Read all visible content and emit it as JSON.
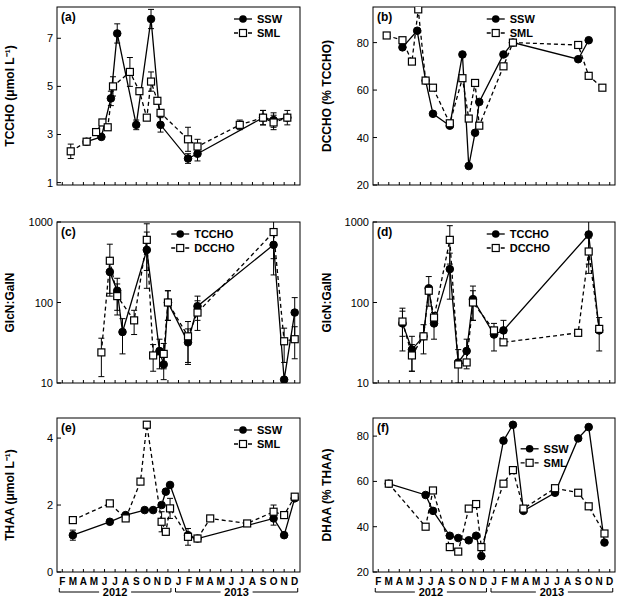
{
  "chart_data": [
    {
      "type": "line",
      "panel_label": "(a)",
      "y_label": "TCCHO (μmol L⁻¹)",
      "xlim": [
        0.5,
        23.5
      ],
      "xticks": [
        1,
        2,
        3,
        4,
        5,
        6,
        7,
        8,
        9,
        10,
        11,
        12,
        13,
        14,
        15,
        16,
        17,
        18,
        19,
        20,
        21,
        22,
        23
      ],
      "ylim": [
        0.9,
        8.3
      ],
      "yticks": [
        1,
        3,
        5,
        7
      ],
      "tick_labels": "y",
      "legend": "upper right",
      "series": [
        {
          "name": "SSW",
          "color": "#000000",
          "marker": "filled-circle",
          "line_style": "solid",
          "x": [
            3.3,
            4.7,
            5.6,
            6.2,
            8.0,
            9.4,
            10.3,
            12.9,
            13.8,
            20.0,
            21.0,
            22.3
          ],
          "values": [
            2.7,
            2.9,
            4.5,
            7.2,
            3.4,
            7.8,
            3.4,
            2.0,
            2.2,
            3.7,
            3.6,
            3.7
          ],
          "errors": [
            null,
            null,
            0.3,
            0.4,
            0.2,
            0.4,
            0.3,
            0.2,
            0.3,
            0.3,
            0.3,
            null
          ]
        },
        {
          "name": "SML",
          "color": "#000000",
          "marker": "open-square",
          "line_style": "dashed",
          "x": [
            1.8,
            3.3,
            4.2,
            4.8,
            5.3,
            5.8,
            7.4,
            8.3,
            9.0,
            9.4,
            10.0,
            10.3,
            12.9,
            13.8,
            17.8,
            20.0,
            21.0,
            22.3
          ],
          "values": [
            2.3,
            2.7,
            3.1,
            3.5,
            3.3,
            5.0,
            5.6,
            4.8,
            3.7,
            5.2,
            4.4,
            3.9,
            2.8,
            2.5,
            3.4,
            3.7,
            3.5,
            3.7
          ],
          "errors": [
            0.3,
            null,
            null,
            null,
            null,
            0.4,
            0.6,
            null,
            null,
            0.4,
            null,
            null,
            0.5,
            0.3,
            0.2,
            0.3,
            0.3,
            0.3
          ]
        }
      ]
    },
    {
      "type": "line",
      "panel_label": "(b)",
      "y_label": "DCCHO (% TCCHO)",
      "xlim": [
        0.5,
        23.5
      ],
      "xticks": [
        1,
        2,
        3,
        4,
        5,
        6,
        7,
        8,
        9,
        10,
        11,
        12,
        13,
        14,
        15,
        16,
        17,
        18,
        19,
        20,
        21,
        22,
        23
      ],
      "ylim": [
        20,
        95
      ],
      "yticks": [
        20,
        40,
        60,
        80
      ],
      "tick_labels": "y",
      "legend": "upper center",
      "series": [
        {
          "name": "SSW",
          "color": "#000000",
          "marker": "filled-circle",
          "line_style": "solid",
          "x": [
            3.3,
            4.7,
            5.5,
            6.2,
            7.8,
            9.0,
            9.6,
            10.2,
            10.6,
            12.9,
            13.8,
            20.0,
            21.0
          ],
          "values": [
            78,
            85,
            64,
            50,
            45,
            75,
            28,
            42,
            55,
            75,
            80,
            73,
            81
          ]
        },
        {
          "name": "SML",
          "color": "#000000",
          "marker": "open-square",
          "line_style": "dashed",
          "x": [
            1.8,
            3.3,
            4.2,
            4.8,
            5.5,
            6.2,
            7.8,
            9.0,
            9.6,
            10.2,
            10.6,
            12.9,
            13.8,
            20.0,
            21.0,
            22.3
          ],
          "values": [
            83,
            81,
            72,
            94,
            64,
            61,
            46,
            65,
            48,
            63,
            45,
            70,
            80,
            79,
            66,
            61
          ]
        }
      ]
    },
    {
      "type": "line",
      "panel_label": "(c)",
      "y_label": "GlcN:GalN",
      "xlim": [
        0.5,
        23.5
      ],
      "xticks": [
        1,
        2,
        3,
        4,
        5,
        6,
        7,
        8,
        9,
        10,
        11,
        12,
        13,
        14,
        15,
        16,
        17,
        18,
        19,
        20,
        21,
        22,
        23
      ],
      "ylim": [
        10,
        1000
      ],
      "yticks": [
        10,
        100,
        1000
      ],
      "log": "y",
      "tick_labels": "y",
      "legend": "upper center",
      "series": [
        {
          "name": "TCCHO",
          "color": "#000000",
          "marker": "filled-circle",
          "line_style": "solid",
          "x": [
            5.5,
            6.2,
            6.7,
            9.0,
            10.2,
            10.6,
            11.0,
            12.9,
            13.8,
            21.0,
            22.0,
            23.0
          ],
          "values": [
            240,
            140,
            43,
            450,
            25,
            17,
            100,
            32,
            90,
            520,
            11,
            75
          ],
          "errors": [
            120,
            60,
            20,
            300,
            10,
            6,
            40,
            15,
            30,
            300,
            null,
            40
          ]
        },
        {
          "name": "DCCHO",
          "color": "#000000",
          "marker": "open-square",
          "line_style": "dashed",
          "x": [
            4.7,
            5.5,
            6.2,
            7.8,
            9.0,
            9.6,
            10.6,
            11.0,
            12.9,
            13.8,
            21.0,
            22.0,
            23.0
          ],
          "values": [
            24,
            330,
            120,
            60,
            600,
            22,
            23,
            100,
            38,
            75,
            750,
            33,
            35
          ],
          "errors": [
            12,
            200,
            50,
            20,
            350,
            8,
            8,
            40,
            20,
            30,
            400,
            15,
            15
          ]
        }
      ]
    },
    {
      "type": "line",
      "panel_label": "(d)",
      "y_label": "GlcN:GalN",
      "xlim": [
        0.5,
        23.5
      ],
      "xticks": [
        1,
        2,
        3,
        4,
        5,
        6,
        7,
        8,
        9,
        10,
        11,
        12,
        13,
        14,
        15,
        16,
        17,
        18,
        19,
        20,
        21,
        22,
        23
      ],
      "ylim": [
        10,
        1000
      ],
      "yticks": [
        10,
        100,
        1000
      ],
      "log": "y",
      "tick_labels": "y",
      "legend": "upper center",
      "series": [
        {
          "name": "TCCHO",
          "color": "#000000",
          "marker": "filled-circle",
          "line_style": "solid",
          "x": [
            3.3,
            4.2,
            5.3,
            5.8,
            6.3,
            7.8,
            8.6,
            9.4,
            10.0,
            12.0,
            12.9,
            21.0,
            22.0
          ],
          "values": [
            55,
            26,
            38,
            150,
            55,
            260,
            18,
            25,
            110,
            40,
            45,
            700,
            45
          ],
          "errors": [
            30,
            12,
            15,
            60,
            20,
            150,
            8,
            10,
            50,
            15,
            15,
            400,
            20
          ]
        },
        {
          "name": "DCCHO",
          "color": "#000000",
          "marker": "open-square",
          "line_style": "dashed",
          "x": [
            3.3,
            4.2,
            5.3,
            5.8,
            6.3,
            7.8,
            8.6,
            9.4,
            10.0,
            12.0,
            12.9,
            20.0,
            21.0,
            22.0
          ],
          "values": [
            58,
            22,
            38,
            140,
            65,
            600,
            17,
            18,
            100,
            45,
            32,
            42,
            430,
            47
          ],
          "errors": [
            20,
            8,
            null,
            null,
            null,
            300,
            null,
            null,
            40,
            null,
            null,
            null,
            200,
            null
          ]
        }
      ]
    },
    {
      "type": "line",
      "panel_label": "(e)",
      "y_label": "THAA (μmol L⁻¹)",
      "xlim": [
        0.5,
        23.5
      ],
      "xticks": [
        {
          "value": 1,
          "label": "F"
        },
        {
          "value": 2,
          "label": "M"
        },
        {
          "value": 3,
          "label": "A"
        },
        {
          "value": 4,
          "label": "M"
        },
        {
          "value": 5,
          "label": "J"
        },
        {
          "value": 6,
          "label": "J"
        },
        {
          "value": 7,
          "label": "A"
        },
        {
          "value": 8,
          "label": "S"
        },
        {
          "value": 9,
          "label": "O"
        },
        {
          "value": 10,
          "label": "N"
        },
        {
          "value": 11,
          "label": "D"
        },
        {
          "value": 12,
          "label": "J"
        },
        {
          "value": 13,
          "label": "F"
        },
        {
          "value": 14,
          "label": "M"
        },
        {
          "value": 15,
          "label": "A"
        },
        {
          "value": 16,
          "label": "M"
        },
        {
          "value": 17,
          "label": "J"
        },
        {
          "value": 18,
          "label": "J"
        },
        {
          "value": 19,
          "label": "A"
        },
        {
          "value": 20,
          "label": "S"
        },
        {
          "value": 21,
          "label": "O"
        },
        {
          "value": 22,
          "label": "N"
        },
        {
          "value": 23,
          "label": "D"
        }
      ],
      "ylim": [
        0,
        4.6
      ],
      "yticks": [
        0,
        2,
        4
      ],
      "legend": "upper right",
      "annotations": [
        {
          "text": "2012",
          "x": [
            1,
            11
          ]
        },
        {
          "text": "2013",
          "x": [
            12,
            23
          ]
        }
      ],
      "series": [
        {
          "name": "SSW",
          "color": "#000000",
          "marker": "filled-circle",
          "line_style": "solid",
          "x": [
            2.0,
            5.5,
            7.0,
            8.8,
            9.6,
            10.4,
            10.8,
            11.2,
            12.9,
            13.8,
            21.0,
            22.0,
            23.0
          ],
          "values": [
            1.1,
            1.5,
            1.7,
            1.85,
            1.85,
            2.0,
            2.4,
            2.6,
            1.1,
            1.0,
            1.6,
            1.1,
            2.2
          ],
          "errors": [
            0.15,
            null,
            null,
            null,
            null,
            null,
            null,
            null,
            null,
            null,
            0.2,
            null,
            null
          ]
        },
        {
          "name": "SML",
          "color": "#000000",
          "marker": "open-square",
          "line_style": "dashed",
          "x": [
            2.0,
            5.5,
            7.0,
            8.4,
            9.0,
            10.4,
            10.8,
            11.2,
            12.9,
            13.8,
            15.0,
            18.5,
            21.0,
            22.0,
            23.0
          ],
          "values": [
            1.55,
            2.05,
            1.6,
            2.7,
            4.4,
            1.5,
            1.2,
            1.9,
            1.05,
            1.0,
            1.6,
            1.45,
            1.8,
            1.7,
            2.25
          ],
          "errors": [
            null,
            null,
            null,
            null,
            null,
            0.3,
            null,
            0.3,
            0.25,
            null,
            null,
            null,
            0.2,
            null,
            null
          ]
        }
      ]
    },
    {
      "type": "line",
      "panel_label": "(f)",
      "y_label": "DHAA (% THAA)",
      "xlim": [
        0.5,
        23.5
      ],
      "xticks": [
        {
          "value": 1,
          "label": "F"
        },
        {
          "value": 2,
          "label": "M"
        },
        {
          "value": 3,
          "label": "A"
        },
        {
          "value": 4,
          "label": "M"
        },
        {
          "value": 5,
          "label": "J"
        },
        {
          "value": 6,
          "label": "J"
        },
        {
          "value": 7,
          "label": "A"
        },
        {
          "value": 8,
          "label": "S"
        },
        {
          "value": 9,
          "label": "O"
        },
        {
          "value": 10,
          "label": "N"
        },
        {
          "value": 11,
          "label": "D"
        },
        {
          "value": 12,
          "label": "J"
        },
        {
          "value": 13,
          "label": "F"
        },
        {
          "value": 14,
          "label": "M"
        },
        {
          "value": 15,
          "label": "A"
        },
        {
          "value": 16,
          "label": "M"
        },
        {
          "value": 17,
          "label": "J"
        },
        {
          "value": 18,
          "label": "J"
        },
        {
          "value": 19,
          "label": "A"
        },
        {
          "value": 20,
          "label": "S"
        },
        {
          "value": 21,
          "label": "O"
        },
        {
          "value": 22,
          "label": "N"
        },
        {
          "value": 23,
          "label": "D"
        }
      ],
      "ylim": [
        20,
        88
      ],
      "yticks": [
        20,
        40,
        60,
        80
      ],
      "legend": "center",
      "annotations": [
        {
          "text": "2012",
          "x": [
            1,
            11
          ]
        },
        {
          "text": "2013",
          "x": [
            12,
            23
          ]
        }
      ],
      "series": [
        {
          "name": "SSW",
          "color": "#000000",
          "marker": "filled-circle",
          "line_style": "solid",
          "x": [
            2.0,
            5.5,
            6.2,
            7.8,
            8.6,
            9.6,
            10.3,
            10.8,
            12.9,
            13.8,
            14.8,
            17.8,
            20.0,
            21.0,
            22.5
          ],
          "values": [
            59,
            54,
            47,
            36,
            35,
            34,
            36,
            27,
            78,
            85,
            47,
            55,
            79,
            84,
            33
          ]
        },
        {
          "name": "SML",
          "color": "#000000",
          "marker": "open-square",
          "line_style": "dashed",
          "x": [
            2.0,
            5.5,
            6.2,
            7.8,
            8.6,
            9.6,
            10.3,
            10.8,
            12.9,
            13.8,
            14.8,
            17.8,
            20.0,
            21.0,
            22.5
          ],
          "values": [
            59,
            40,
            56,
            31,
            29,
            48,
            50,
            31,
            59,
            65,
            48,
            57,
            55,
            49,
            37
          ]
        }
      ]
    }
  ]
}
